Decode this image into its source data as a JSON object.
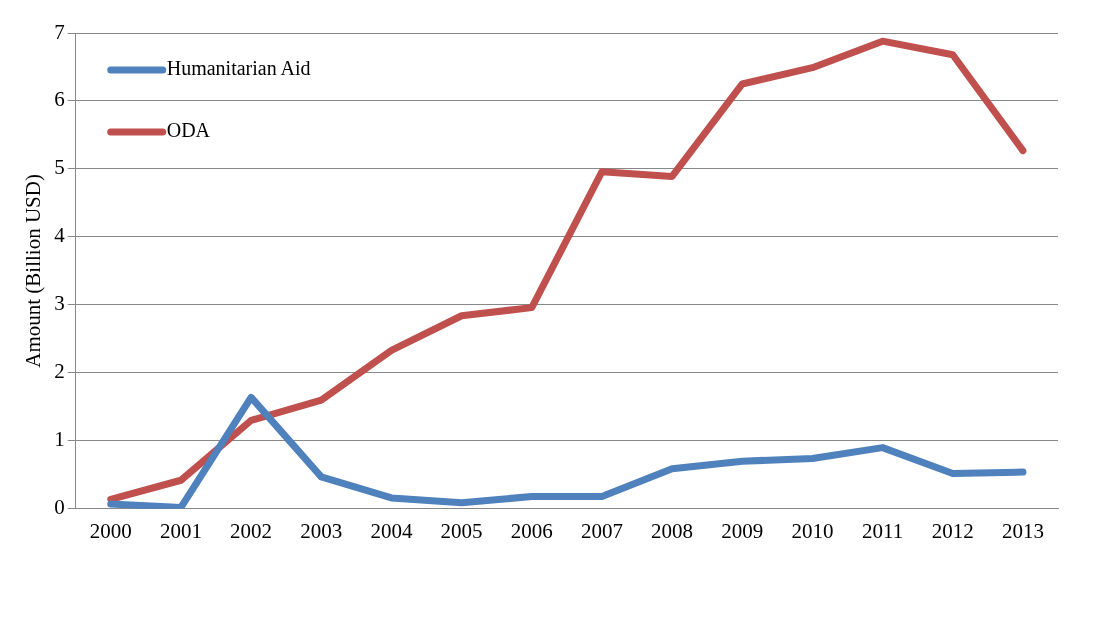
{
  "chart_data": {
    "type": "line",
    "ylabel": "Amount (Billion USD)",
    "categories": [
      "2000",
      "2001",
      "2002",
      "2003",
      "2004",
      "2005",
      "2006",
      "2007",
      "2008",
      "2009",
      "2010",
      "2011",
      "2012",
      "2013"
    ],
    "series": [
      {
        "name": "Humanitarian Aid",
        "color": "#4f81bd",
        "values": [
          0.07,
          0.02,
          1.64,
          0.47,
          0.16,
          0.09,
          0.18,
          0.18,
          0.59,
          0.7,
          0.74,
          0.9,
          0.52,
          0.54
        ]
      },
      {
        "name": "ODA",
        "color": "#c0504d",
        "values": [
          0.14,
          0.42,
          1.3,
          1.6,
          2.33,
          2.84,
          2.96,
          4.96,
          4.89,
          6.25,
          6.49,
          6.88,
          6.68,
          5.27
        ]
      }
    ],
    "ylim": [
      0,
      7
    ],
    "yticks": [
      0,
      1,
      2,
      3,
      4,
      5,
      6,
      7
    ],
    "grid": "y",
    "legend": "top left",
    "marker": "none",
    "line_style": "solid"
  }
}
